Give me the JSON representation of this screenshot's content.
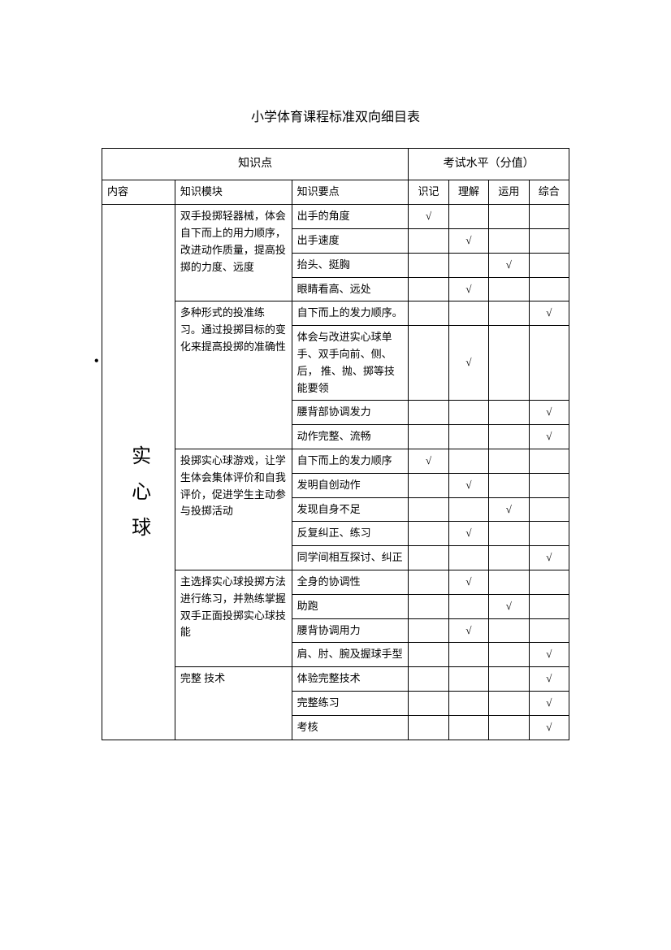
{
  "title": "小学体育课程标准双向细目表",
  "headers": {
    "knowledge": "知识点",
    "exam_level": "考试水平（分值）",
    "content": "内容",
    "module": "知识模块",
    "point": "知识要点",
    "level1": "识记",
    "level2": "理解",
    "level3": "运用",
    "level4": "综合"
  },
  "content_label": "实心球",
  "checkmark": "√",
  "modules": [
    {
      "text": "双手投掷轻器械，体会自下而上的用力顺序，改进动作质量，提高投掷的力度、远度",
      "points": [
        {
          "text": "出手的角度",
          "checks": [
            true,
            false,
            false,
            false
          ]
        },
        {
          "text": "出手速度",
          "checks": [
            false,
            true,
            false,
            false
          ]
        },
        {
          "text": "抬头、挺胸",
          "checks": [
            false,
            false,
            true,
            false
          ]
        },
        {
          "text": "眼睛看高、远处",
          "checks": [
            false,
            true,
            false,
            false
          ]
        }
      ]
    },
    {
      "text": "多种形式的投准练 习。通过投掷目标的变化来提高投掷的准确性",
      "points": [
        {
          "text": "自下而上的发力顺序。",
          "checks": [
            false,
            false,
            false,
            true
          ]
        },
        {
          "text": "体会与改进实心球单 手、双手向前、侧、后， 推、抛、掷等技能要领",
          "checks": [
            false,
            true,
            false,
            false
          ]
        },
        {
          "text": "腰背部协调发力",
          "checks": [
            false,
            false,
            false,
            true
          ]
        },
        {
          "text": "动作完整、流畅",
          "checks": [
            false,
            false,
            false,
            true
          ]
        }
      ]
    },
    {
      "text": "投掷实心球游戏，让学生体会集体评价和自我评价，促进学生主动参与投掷活动",
      "points": [
        {
          "text": "自下而上的发力顺序",
          "checks": [
            true,
            false,
            false,
            false
          ]
        },
        {
          "text": "发明自创动作",
          "checks": [
            false,
            true,
            false,
            false
          ]
        },
        {
          "text": "发现自身不足",
          "checks": [
            false,
            false,
            true,
            false
          ]
        },
        {
          "text": "反复纠正、练习",
          "checks": [
            false,
            true,
            false,
            false
          ]
        },
        {
          "text": "同学间相互探讨、纠正",
          "checks": [
            false,
            false,
            false,
            true
          ]
        }
      ]
    },
    {
      "text": "主选择实心球投掷方法进行练习，并熟练掌握双手正面投掷实心球技能",
      "points": [
        {
          "text": "全身的协调性",
          "checks": [
            false,
            true,
            false,
            false
          ]
        },
        {
          "text": "助跑",
          "checks": [
            false,
            false,
            true,
            false
          ]
        },
        {
          "text": "腰背协调用力",
          "checks": [
            false,
            true,
            false,
            false
          ]
        },
        {
          "text": "肩、肘、腕及握球手型",
          "checks": [
            false,
            false,
            false,
            true
          ]
        }
      ]
    },
    {
      "text": "完整  技术",
      "points": [
        {
          "text": "  体验完整技术",
          "checks": [
            false,
            false,
            false,
            true
          ]
        },
        {
          "text": "完整练习",
          "checks": [
            false,
            false,
            false,
            true
          ]
        },
        {
          "text": "考核",
          "checks": [
            false,
            false,
            false,
            true
          ]
        }
      ]
    }
  ]
}
